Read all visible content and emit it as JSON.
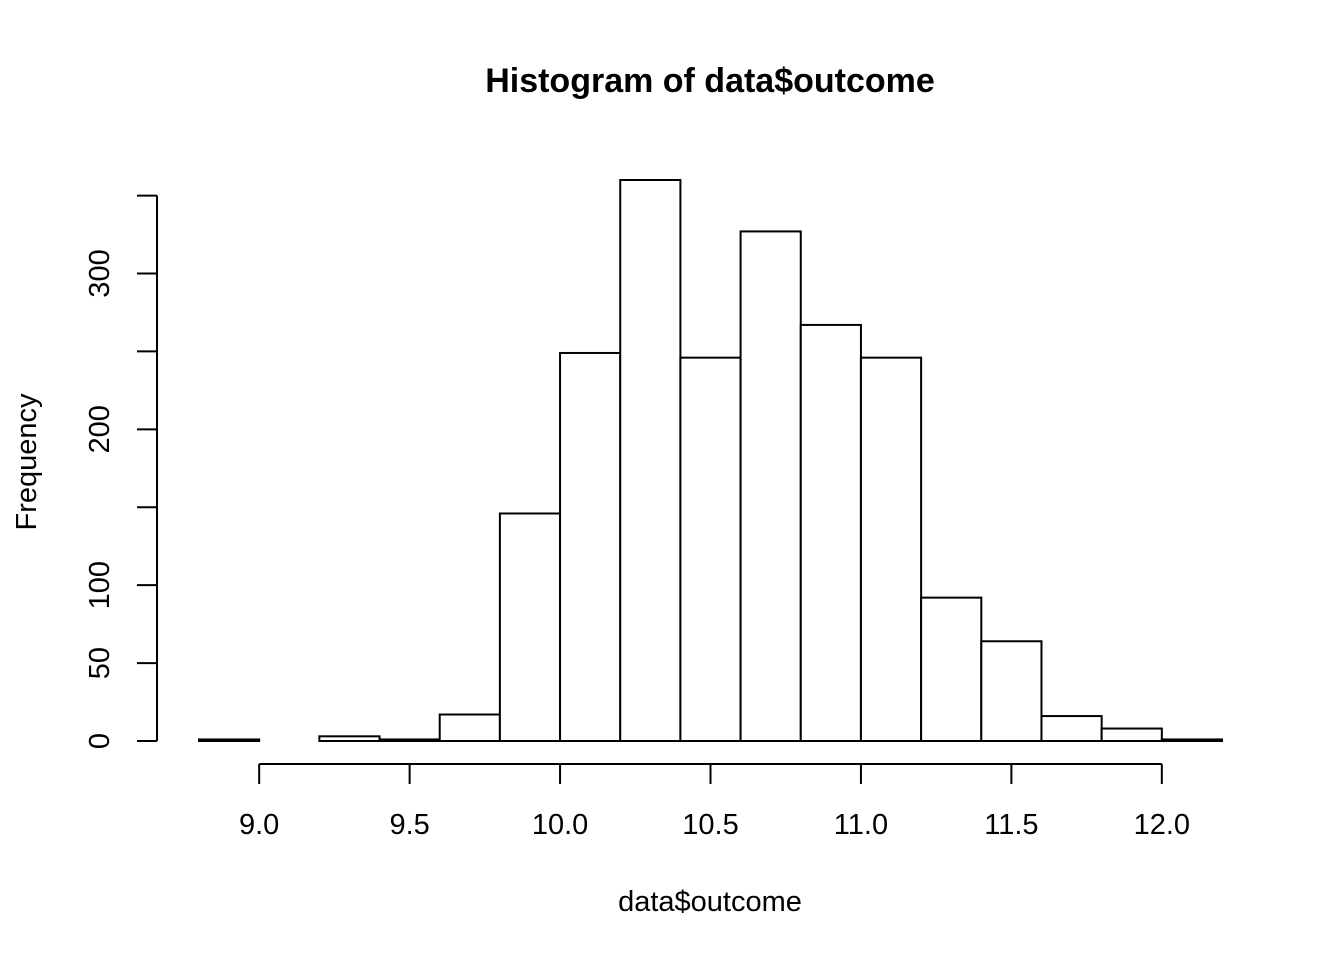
{
  "chart_data": {
    "type": "bar",
    "title": "Histogram of data$outcome",
    "xlabel": "data$outcome",
    "ylabel": "Frequency",
    "bin_edges": [
      8.8,
      9.0,
      9.2,
      9.4,
      9.6,
      9.8,
      10.0,
      10.2,
      10.4,
      10.6,
      10.8,
      11.0,
      11.2,
      11.4,
      11.6,
      11.8,
      12.0,
      12.2
    ],
    "values": [
      1,
      0,
      3,
      1,
      17,
      146,
      249,
      360,
      246,
      327,
      267,
      246,
      92,
      64,
      16,
      8,
      1
    ],
    "xlim": [
      8.8,
      12.2
    ],
    "ylim": [
      0,
      360
    ],
    "x_ticks": [
      9.0,
      9.5,
      10.0,
      10.5,
      11.0,
      11.5,
      12.0
    ],
    "x_tick_labels": [
      "9.0",
      "9.5",
      "10.0",
      "10.5",
      "11.0",
      "11.5",
      "12.0"
    ],
    "y_ticks": [
      0,
      50,
      100,
      150,
      200,
      250,
      300,
      350
    ],
    "y_tick_labels": [
      "0",
      "50",
      "100",
      "",
      "200",
      "",
      "300",
      ""
    ],
    "grid": false,
    "legend": "none",
    "colors": {
      "bar_fill": "#ffffff",
      "bar_stroke": "#000000",
      "axis": "#000000",
      "background": "#ffffff"
    }
  }
}
